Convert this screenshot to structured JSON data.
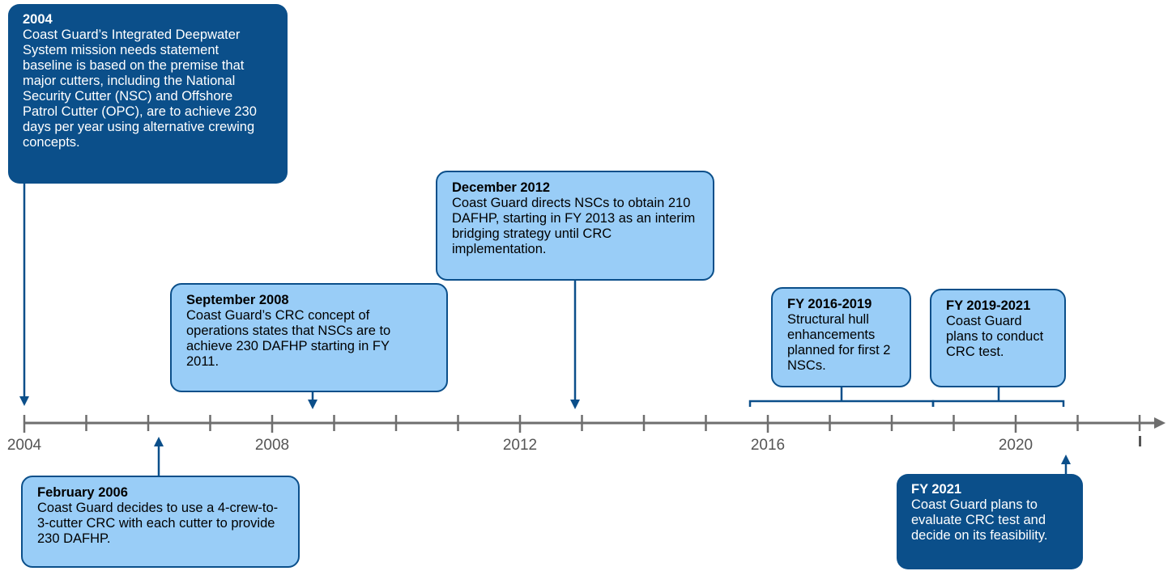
{
  "axis": {
    "start_year": 2004,
    "end_year": 2022,
    "labels": [
      "2004",
      "2008",
      "2012",
      "2016",
      "2020"
    ]
  },
  "colors": {
    "dark_box": "#0b4f8a",
    "light_box": "#99cdf7",
    "axis": "#6e6e6e",
    "arrow": "#0b4f8a"
  },
  "events": [
    {
      "id": "2004",
      "title": "2004",
      "text": "Coast Guard’s Integrated Deepwater System mission needs statement baseline is based on the premise that major cutters, including the National Security Cutter (NSC) and Offshore Patrol Cutter (OPC), are to achieve 230 days per year using alternative crewing concepts.",
      "style": "dark",
      "position": "above"
    },
    {
      "id": "feb-2006",
      "title": "February 2006",
      "text": "Coast Guard decides to use a 4-crew-to-3-cutter CRC with each cutter to provide 230 DAFHP.",
      "style": "light",
      "position": "below"
    },
    {
      "id": "sep-2008",
      "title": "September 2008",
      "text": "Coast Guard’s CRC concept of operations states that NSCs are to achieve 230 DAFHP starting in FY 2011.",
      "style": "light",
      "position": "above"
    },
    {
      "id": "dec-2012",
      "title": "December 2012",
      "text": "Coast Guard directs NSCs to obtain 210 DAFHP, starting in FY 2013 as an interim bridging strategy until CRC implementation.",
      "style": "light",
      "position": "above"
    },
    {
      "id": "fy2016-2019",
      "title": "FY 2016-2019",
      "text": "Structural hull enhancements planned for first 2 NSCs.",
      "style": "light",
      "position": "above"
    },
    {
      "id": "fy2019-2021",
      "title": "FY 2019-2021",
      "text": "Coast Guard plans to conduct CRC test.",
      "style": "light",
      "position": "above"
    },
    {
      "id": "fy2021",
      "title": "FY 2021",
      "text": "Coast Guard plans to evaluate CRC test and decide on its feasibility.",
      "style": "dark",
      "position": "below"
    }
  ]
}
